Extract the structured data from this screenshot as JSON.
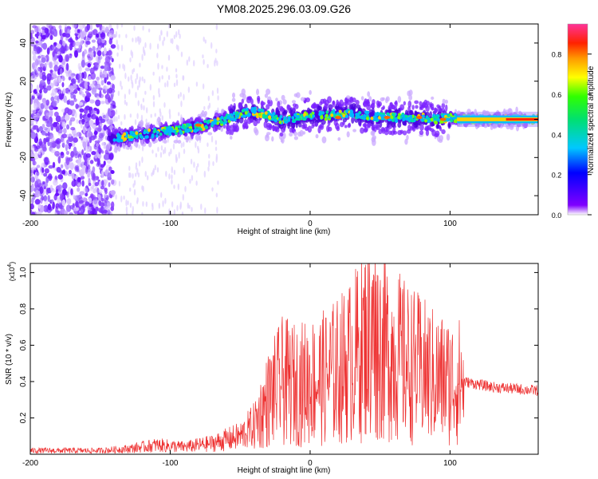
{
  "title": "YM08.2025.296.03.09.G26",
  "chart_data": [
    {
      "type": "heatmap",
      "title": "YM08.2025.296.03.09.G26",
      "xlabel": "Height of straight line (km)",
      "ylabel": "Frequency (Hz)",
      "xlim": [
        -200,
        163
      ],
      "ylim": [
        -50,
        50
      ],
      "x_ticks": [
        "-200",
        "-100",
        "0",
        "100"
      ],
      "y_ticks": [
        "40",
        "20",
        "0",
        "-20",
        "-40"
      ],
      "colorbar": {
        "label": "Normalized spectral amplitude",
        "range": [
          0,
          0.95
        ],
        "ticks": [
          "0.0",
          "0.2",
          "0.4",
          "0.6",
          "0.8"
        ]
      },
      "ridge": {
        "x": [
          -140,
          -120,
          -100,
          -80,
          -60,
          -50,
          -40,
          -30,
          -20,
          -10,
          0,
          10,
          20,
          30,
          40,
          50,
          60,
          70,
          80,
          90,
          100,
          110,
          163
        ],
        "frequency": [
          -10,
          -8,
          -6,
          -4,
          0,
          3,
          4,
          2,
          0,
          1,
          2,
          2,
          3,
          3,
          2,
          1,
          1,
          1,
          1,
          0,
          1,
          0,
          0
        ]
      }
    },
    {
      "type": "line",
      "xlabel": "Height of straight line (km)",
      "ylabel": "SNR (10 * v/v)",
      "y_multiplier": "(x10",
      "y_multiplier_exp": "4",
      "xlim": [
        -200,
        163
      ],
      "ylim": [
        0,
        1.05
      ],
      "x_ticks": [
        "-200",
        "-100",
        "0",
        "100"
      ],
      "y_ticks": [
        "1.0",
        "0.8",
        "0.6",
        "0.4",
        "0.2"
      ],
      "series": [
        {
          "name": "SNR",
          "color": "#ee3333",
          "envelope_x": [
            -200,
            -150,
            -130,
            -110,
            -90,
            -70,
            -50,
            -40,
            -30,
            -20,
            -10,
            0,
            10,
            20,
            30,
            40,
            45,
            50,
            60,
            70,
            80,
            90,
            100,
            110,
            130,
            163
          ],
          "envelope_y": [
            0.02,
            0.02,
            0.03,
            0.05,
            0.04,
            0.06,
            0.1,
            0.16,
            0.3,
            0.4,
            0.38,
            0.4,
            0.42,
            0.46,
            0.52,
            0.62,
            0.68,
            0.6,
            0.55,
            0.5,
            0.46,
            0.42,
            0.4,
            0.4,
            0.37,
            0.35
          ],
          "peak": {
            "x": 45,
            "y": 1.05
          }
        }
      ]
    }
  ]
}
